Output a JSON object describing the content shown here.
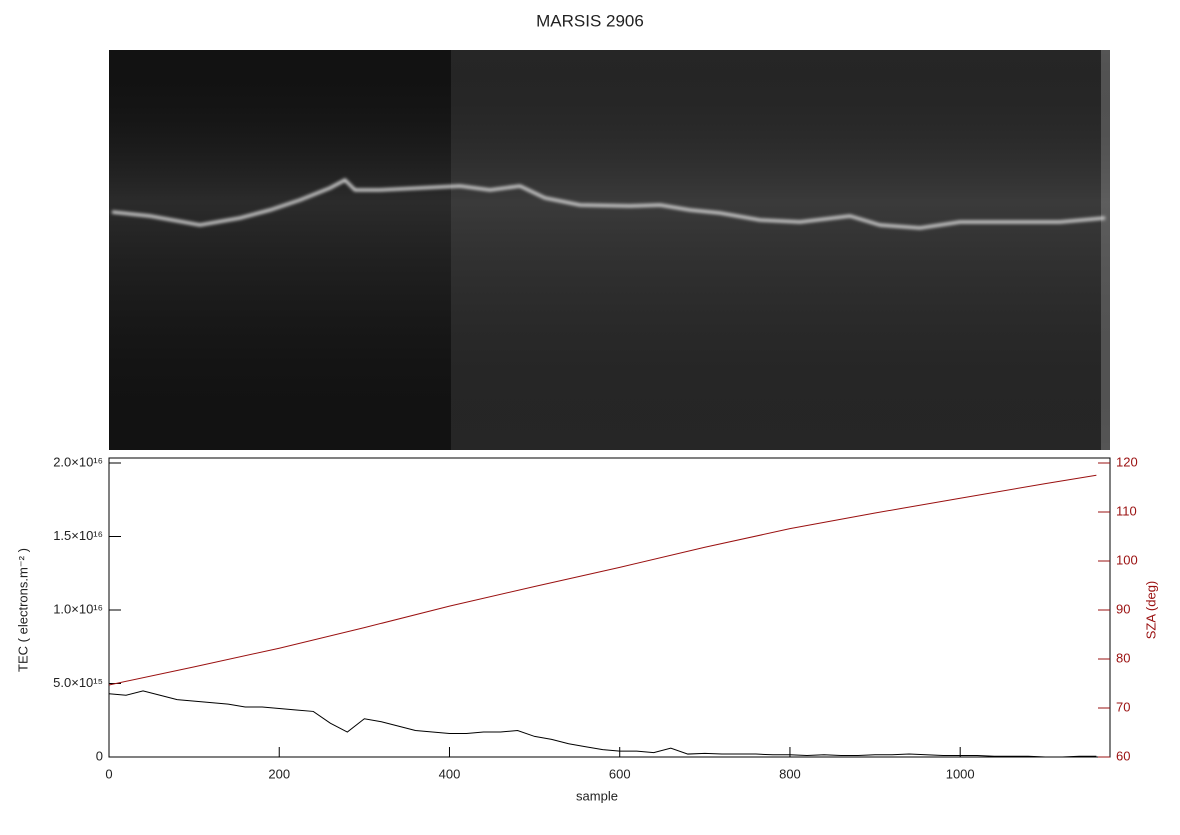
{
  "chart_data": {
    "type": "line",
    "title": "MARSIS 2906",
    "xlabel": "sample",
    "ylabel": "TEC ( electrons.m⁻² )",
    "y2label": "SZA (deg)",
    "xlim": [
      0,
      1176
    ],
    "xticks": [
      0,
      200,
      400,
      600,
      800,
      1000
    ],
    "ylim": [
      0,
      2e+16
    ],
    "yticks": [
      0,
      {
        "value": 5000000000000000.0,
        "label": "5.0×10¹⁵"
      },
      {
        "value": 1e+16,
        "label": "1.0×10¹⁶"
      },
      {
        "value": 1.5e+16,
        "label": "1.5×10¹⁶"
      },
      {
        "value": 2e+16,
        "label": "2.0×10¹⁶"
      }
    ],
    "y2lim": [
      60,
      120
    ],
    "y2ticks": [
      60,
      70,
      80,
      90,
      100,
      110,
      120
    ],
    "y2color": "#9a1010",
    "series": [
      {
        "color": "#000000",
        "x": [
          0,
          20,
          40,
          60,
          80,
          100,
          120,
          140,
          160,
          180,
          200,
          220,
          240,
          260,
          280,
          300,
          320,
          340,
          360,
          380,
          400,
          420,
          440,
          460,
          480,
          500,
          520,
          540,
          560,
          580,
          600,
          620,
          640,
          660,
          680,
          700,
          720,
          740,
          760,
          780,
          800,
          820,
          840,
          860,
          880,
          900,
          920,
          940,
          960,
          980,
          1000,
          1020,
          1040,
          1060,
          1080,
          1100,
          1120,
          1140,
          1160
        ],
        "values": [
          4300000000000000.0,
          4200000000000000.0,
          4500000000000000.0,
          4200000000000000.0,
          3900000000000000.0,
          3800000000000000.0,
          3700000000000000.0,
          3600000000000000.0,
          3400000000000000.0,
          3400000000000000.0,
          3300000000000000.0,
          3200000000000000.0,
          3100000000000000.0,
          2300000000000000.0,
          1700000000000000.0,
          2600000000000000.0,
          2400000000000000.0,
          2100000000000000.0,
          1800000000000000.0,
          1700000000000000.0,
          1600000000000000.0,
          1600000000000000.0,
          1700000000000000.0,
          1700000000000000.0,
          1800000000000000.0,
          1400000000000000.0,
          1200000000000000.0,
          900000000000000.0,
          700000000000000.0,
          500000000000000.0,
          400000000000000.0,
          400000000000000.0,
          300000000000000.0,
          600000000000000.0,
          200000000000000.0,
          250000000000000.0,
          200000000000000.0,
          200000000000000.0,
          200000000000000.0,
          150000000000000.0,
          150000000000000.0,
          100000000000000.0,
          150000000000000.0,
          100000000000000.0,
          100000000000000.0,
          150000000000000.0,
          150000000000000.0,
          200000000000000.0,
          150000000000000.0,
          100000000000000.0,
          100000000000000.0,
          100000000000000.0,
          50000000000000.0,
          50000000000000.0,
          50000000000000.0,
          0,
          0,
          50000000000000.0,
          50000000000000.0
        ]
      },
      {
        "color": "#9a1010",
        "axis": "y2",
        "x": [
          0,
          100,
          200,
          300,
          400,
          500,
          600,
          700,
          800,
          900,
          1000,
          1100,
          1160
        ],
        "values": [
          74.7,
          78.4,
          82.2,
          86.4,
          90.8,
          94.8,
          98.7,
          102.8,
          106.6,
          109.8,
          112.8,
          115.8,
          117.5
        ]
      }
    ]
  }
}
